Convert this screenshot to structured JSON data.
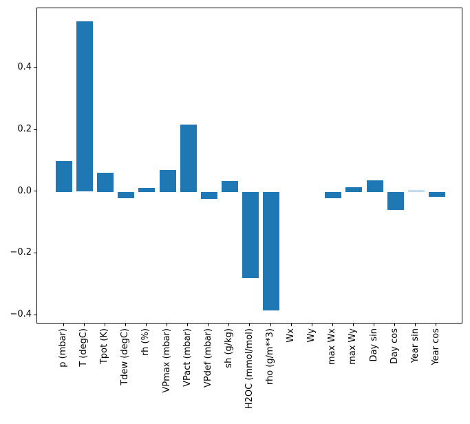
{
  "figure": {
    "background": "#ffffff",
    "bar_color": "#1f77b4",
    "axis_color": "#000000",
    "text_color": "#000000"
  },
  "chart_data": {
    "type": "bar",
    "title": "",
    "xlabel": "",
    "ylabel": "",
    "grid": false,
    "legend": false,
    "categories": [
      "p (mbar)",
      "T (degC)",
      "Tpot (K)",
      "Tdew (degC)",
      "rh (%)",
      "VPmax (mbar)",
      "VPact (mbar)",
      "VPdef (mbar)",
      "sh (g/kg)",
      "H2OC (mmol/mol)",
      "rho (g/m**3)",
      "Wx",
      "Wy",
      "max Wx",
      "max Wy",
      "Day sin",
      "Day cos",
      "Year sin",
      "Year cos"
    ],
    "values": [
      0.1,
      0.552,
      0.063,
      -0.02,
      0.013,
      0.071,
      0.218,
      -0.023,
      0.036,
      -0.278,
      -0.383,
      0.0,
      0.0,
      -0.019,
      0.016,
      0.037,
      -0.058,
      0.003,
      -0.016
    ],
    "ylim": [
      -0.429,
      0.595
    ],
    "y_ticks": [
      {
        "value": 0.4,
        "label": "0.4"
      },
      {
        "value": 0.2,
        "label": "0.2"
      },
      {
        "value": 0.0,
        "label": "0.0"
      },
      {
        "value": -0.2,
        "label": "−0.2"
      },
      {
        "value": -0.4,
        "label": "−0.4"
      }
    ]
  }
}
